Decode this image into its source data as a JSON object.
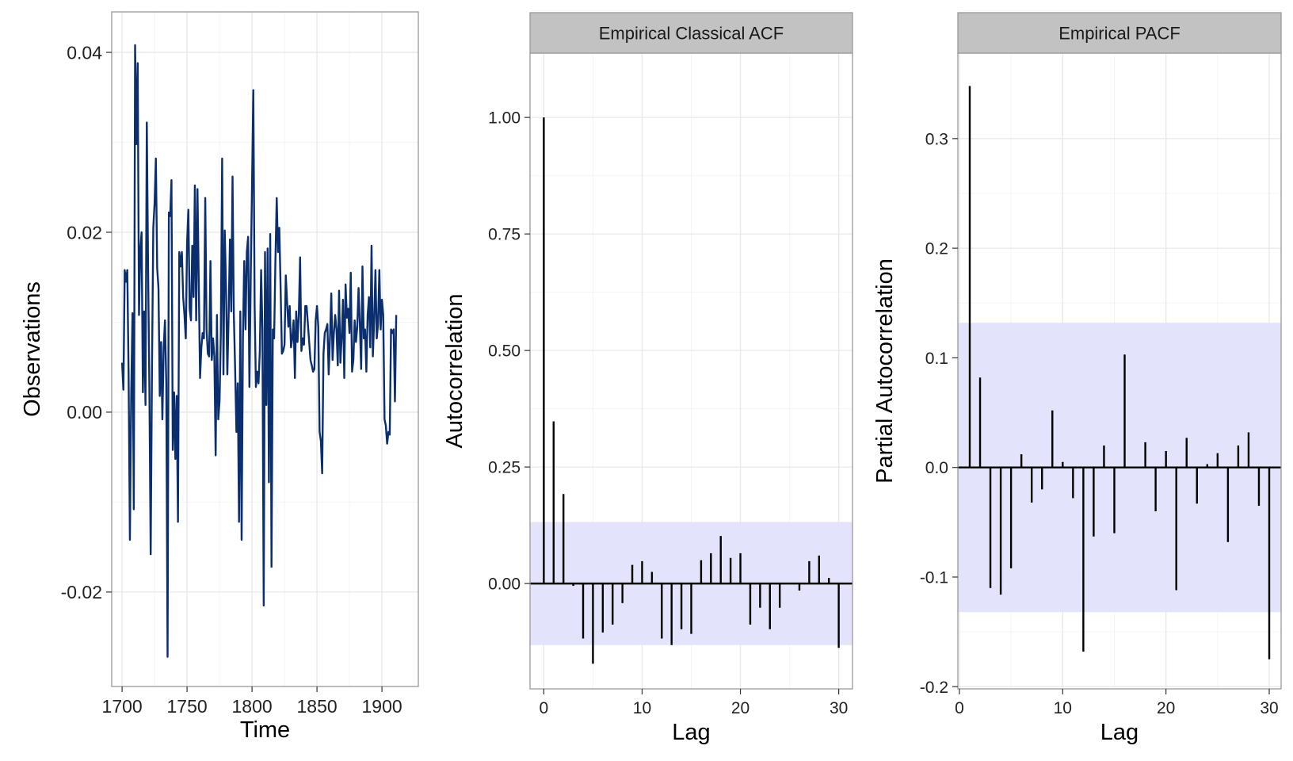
{
  "colors": {
    "series_line": "#0b2e6e",
    "band_fill": "#e1e2fb",
    "strip_fill": "#c2c2c2",
    "spike": "#000000",
    "grid_major": "#e8e8e8",
    "grid_minor": "#f4f4f4",
    "panel_border": "#999999"
  },
  "chart_data": [
    {
      "type": "line",
      "title": "",
      "xlabel": "Time",
      "ylabel": "Observations",
      "xlim": [
        1692,
        1928
      ],
      "ylim": [
        -0.0305,
        0.0445
      ],
      "x_ticks": [
        1700,
        1750,
        1800,
        1850,
        1900
      ],
      "y_ticks": [
        -0.02,
        0.0,
        0.02,
        0.04
      ],
      "y_tick_labels": [
        "-0.02",
        "0.00",
        "0.02",
        "0.04"
      ],
      "grid": true,
      "series": [
        {
          "x_start": 1700,
          "x_step": 1,
          "values": [
            0.0055,
            0.0025,
            0.0158,
            0.0145,
            0.0158,
            0.0042,
            -0.0142,
            0.002,
            0.011,
            -0.0108,
            0.0408,
            0.0298,
            0.0388,
            0.0108,
            0.018,
            0.02,
            0.0022,
            0.0112,
            0.0008,
            0.0322,
            0.016,
            0.0025,
            -0.0158,
            0.0048,
            0.0205,
            0.0232,
            0.0282,
            0.016,
            0.0138,
            0.0018,
            0.0078,
            -0.0008,
            0.0072,
            0.0102,
            0.0032,
            -0.0272,
            0.0222,
            0.0218,
            0.0258,
            -0.0042,
            0.0022,
            -0.0052,
            0.0018,
            -0.0122,
            0.0178,
            0.0162,
            0.0178,
            0.0128,
            0.0108,
            0.0082,
            0.0188,
            0.0225,
            0.0115,
            0.0102,
            0.0185,
            0.0128,
            0.0252,
            0.0102,
            0.0248,
            0.0145,
            0.0038,
            0.0072,
            0.0088,
            0.0082,
            0.0238,
            0.0092,
            0.0065,
            0.0062,
            0.0168,
            0.0058,
            0.0082,
            0.0062,
            -0.0048,
            0.0108,
            -0.0008,
            0.0012,
            0.0088,
            0.0282,
            0.0042,
            0.0202,
            0.0138,
            0.0042,
            0.0108,
            0.0192,
            0.0112,
            0.0262,
            0.0108,
            0.0048,
            -0.0022,
            0.0032,
            -0.0122,
            0.0112,
            -0.0142,
            0.0082,
            0.0168,
            0.0092,
            0.0178,
            0.0195,
            0.0028,
            0.0152,
            0.0252,
            0.0358,
            0.0118,
            0.0028,
            0.0045,
            0.0032,
            0.0068,
            0.0158,
            0.0092,
            -0.0215,
            0.0178,
            0.0008,
            0.0182,
            -0.0078,
            0.0198,
            -0.0172,
            0.0092,
            0.0082,
            0.0168,
            0.0238,
            0.0178,
            0.0205,
            0.0138,
            0.0065,
            0.0068,
            0.0075,
            0.0152,
            0.0122,
            0.0095,
            0.0118,
            0.0072,
            0.0082,
            0.0102,
            0.0038,
            0.0112,
            0.0078,
            0.0108,
            0.0172,
            0.0068,
            0.0082,
            0.0075,
            0.0118,
            0.0118,
            0.0098,
            0.0078,
            0.0058,
            0.0052,
            0.0045,
            0.0048,
            0.0102,
            0.0118,
            0.0095,
            -0.0022,
            -0.0032,
            -0.0068,
            0.0065,
            0.0088,
            0.0092,
            0.0098,
            0.0042,
            0.0082,
            0.0132,
            0.0058,
            0.0088,
            0.0108,
            0.0092,
            0.0052,
            0.0135,
            0.0055,
            0.0082,
            0.0125,
            0.0038,
            0.0142,
            0.0105,
            0.0115,
            0.0088,
            0.0155,
            0.0045,
            0.0058,
            0.0102,
            0.0078,
            0.0095,
            0.0138,
            0.0098,
            0.0048,
            0.0162,
            0.0082,
            0.0092,
            0.0045,
            0.0108,
            0.0128,
            0.0072,
            0.0185,
            0.0062,
            0.0102,
            0.0158,
            0.0082,
            0.0098,
            0.0158,
            0.0092,
            0.0125,
            0.0108,
            -0.0008,
            -0.0015,
            -0.0035,
            -0.0022,
            -0.0025,
            0.0092,
            0.0088,
            0.0092,
            0.0012,
            0.0108
          ]
        }
      ]
    },
    {
      "type": "bar",
      "strip_title": "Empirical Classical ACF",
      "xlabel": "Lag",
      "ylabel": "Autocorrelation",
      "xlim": [
        -1.4,
        31.4
      ],
      "ylim": [
        -0.226,
        1.138
      ],
      "x_ticks": [
        0,
        10,
        20,
        30
      ],
      "y_ticks": [
        0.0,
        0.25,
        0.5,
        0.75,
        1.0
      ],
      "y_tick_labels": [
        "0.00",
        "0.25",
        "0.50",
        "0.75",
        "1.00"
      ],
      "confidence_band": [
        -0.132,
        0.132
      ],
      "grid": true,
      "lags": [
        0,
        1,
        2,
        3,
        4,
        5,
        6,
        7,
        8,
        9,
        10,
        11,
        12,
        13,
        14,
        15,
        16,
        17,
        18,
        19,
        20,
        21,
        22,
        23,
        24,
        25,
        26,
        27,
        28,
        29,
        30
      ],
      "values": [
        1.0,
        0.348,
        0.192,
        -0.005,
        -0.118,
        -0.172,
        -0.105,
        -0.088,
        -0.042,
        0.04,
        0.048,
        0.025,
        -0.118,
        -0.132,
        -0.098,
        -0.108,
        0.05,
        0.065,
        0.102,
        0.055,
        0.065,
        -0.088,
        -0.052,
        -0.098,
        -0.052,
        0.0,
        -0.015,
        0.048,
        0.06,
        0.012,
        -0.138
      ]
    },
    {
      "type": "bar",
      "strip_title": "Empirical PACF",
      "xlabel": "Lag",
      "ylabel": "Partial Autocorrelation",
      "xlim": [
        -0.15,
        31.15
      ],
      "ylim": [
        -0.202,
        0.378
      ],
      "x_ticks": [
        0,
        10,
        20,
        30
      ],
      "y_ticks": [
        -0.2,
        -0.1,
        0.0,
        0.1,
        0.2,
        0.3
      ],
      "y_tick_labels": [
        "-0.2",
        "-0.1",
        "0.0",
        "0.1",
        "0.2",
        "0.3"
      ],
      "confidence_band": [
        -0.132,
        0.132
      ],
      "grid": true,
      "lags": [
        1,
        2,
        3,
        4,
        5,
        6,
        7,
        8,
        9,
        10,
        11,
        12,
        13,
        14,
        15,
        16,
        17,
        18,
        19,
        20,
        21,
        22,
        23,
        24,
        25,
        26,
        27,
        28,
        29,
        30
      ],
      "values": [
        0.348,
        0.082,
        -0.11,
        -0.116,
        -0.092,
        0.012,
        -0.032,
        -0.02,
        0.052,
        0.005,
        -0.028,
        -0.168,
        -0.063,
        0.02,
        -0.06,
        0.103,
        0.0,
        0.023,
        -0.04,
        0.015,
        -0.112,
        0.027,
        -0.033,
        0.003,
        0.013,
        -0.068,
        0.02,
        0.032,
        -0.035,
        -0.175
      ]
    }
  ]
}
